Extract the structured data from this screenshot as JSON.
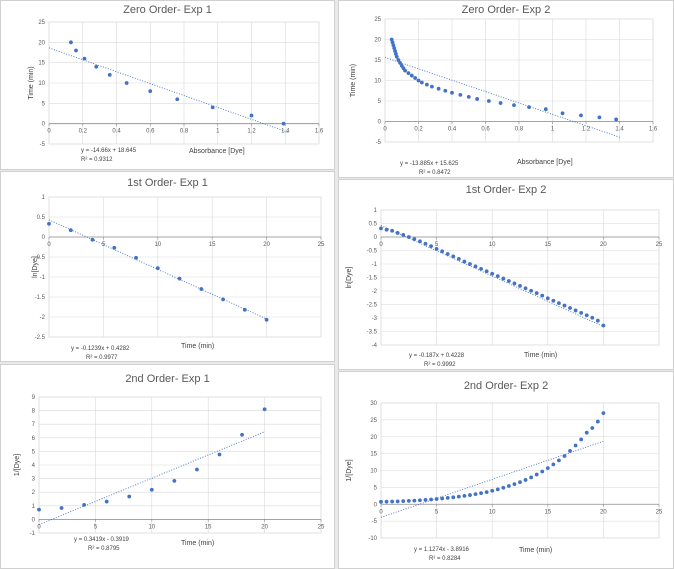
{
  "chart_data": [
    {
      "id": "c1",
      "type": "scatter",
      "title": "Zero Order- Exp 1",
      "xlabel": "Absorbance [Dye]",
      "ylabel": "Time (min)",
      "xlim": [
        0,
        1.6
      ],
      "ylim": [
        -5,
        25
      ],
      "xticks": [
        "0",
        "0.2",
        "0.4",
        "0.6",
        "0.8",
        "1",
        "1.2",
        "1.4",
        "1.6"
      ],
      "yticks": [
        "-5",
        "0",
        "5",
        "10",
        "15",
        "20",
        "25"
      ],
      "series": [
        {
          "x": [
            0.13,
            0.16,
            0.21,
            0.28,
            0.36,
            0.46,
            0.6,
            0.76,
            0.97,
            1.2,
            1.39
          ],
          "y": [
            20,
            18,
            16,
            14,
            12,
            10,
            8,
            6,
            4,
            2,
            0
          ]
        }
      ],
      "trendline": {
        "slope": -14.66,
        "intercept": 18.645
      },
      "equation": "y = -14.66x + 18.645",
      "r2": "R² = 0.9312"
    },
    {
      "id": "c2",
      "type": "scatter",
      "title": "Zero Order- Exp 2",
      "xlabel": "Absorbance [Dye]",
      "ylabel": "Time (min)",
      "xlim": [
        0,
        1.6
      ],
      "ylim": [
        -5,
        25
      ],
      "xticks": [
        "0",
        "0.2",
        "0.4",
        "0.6",
        "0.8",
        "1",
        "1.2",
        "1.4",
        "1.6"
      ],
      "yticks": [
        "-5",
        "0",
        "5",
        "10",
        "15",
        "20",
        "25"
      ],
      "series": [
        {
          "x": [
            0.04,
            0.045,
            0.05,
            0.055,
            0.06,
            0.065,
            0.07,
            0.08,
            0.09,
            0.1,
            0.11,
            0.12,
            0.14,
            0.16,
            0.18,
            0.2,
            0.22,
            0.25,
            0.28,
            0.32,
            0.36,
            0.4,
            0.45,
            0.5,
            0.55,
            0.62,
            0.69,
            0.77,
            0.86,
            0.96,
            1.06,
            1.17,
            1.28,
            1.38
          ],
          "y": [
            20,
            19.3,
            18.6,
            17.9,
            17.2,
            16.5,
            15.8,
            15,
            14.3,
            13.6,
            13,
            12.4,
            11.8,
            11.2,
            10.6,
            10,
            9.5,
            9,
            8.5,
            8,
            7.5,
            7,
            6.5,
            6,
            5.5,
            5,
            4.5,
            4,
            3.5,
            3,
            2,
            1.5,
            1,
            0.5
          ]
        }
      ],
      "trendline": {
        "slope": -13.885,
        "intercept": 15.625
      },
      "equation": "y = -13.885x + 15.625",
      "r2": "R² = 0.8472"
    },
    {
      "id": "c3",
      "type": "scatter",
      "title": "1st Order- Exp 1",
      "xlabel": "Time (min)",
      "ylabel": "ln[Dye]",
      "xlim": [
        0,
        25
      ],
      "ylim": [
        -2.5,
        1
      ],
      "xticks": [
        "0",
        "5",
        "10",
        "15",
        "20",
        "25"
      ],
      "yticks": [
        "-2.5",
        "-2",
        "-1.5",
        "-1",
        "-0.5",
        "0",
        "0.5",
        "1"
      ],
      "series": [
        {
          "x": [
            0,
            2,
            4,
            6,
            8,
            10,
            12,
            14,
            16,
            18,
            20
          ],
          "y": [
            0.33,
            0.17,
            -0.07,
            -0.27,
            -0.52,
            -0.78,
            -1.04,
            -1.3,
            -1.56,
            -1.82,
            -2.07
          ]
        }
      ],
      "trendline": {
        "slope": -0.1239,
        "intercept": 0.4282
      },
      "equation": "y = -0.1239x + 0.4282",
      "r2": "R² = 0.9977"
    },
    {
      "id": "c4",
      "type": "scatter",
      "title": "1st Order- Exp 2",
      "xlabel": "Time (min)",
      "ylabel": "ln[Dye]",
      "xlim": [
        0,
        25
      ],
      "ylim": [
        -4,
        1
      ],
      "xticks": [
        "0",
        "5",
        "10",
        "15",
        "20",
        "25"
      ],
      "yticks": [
        "-4",
        "-3.5",
        "-3",
        "-2.5",
        "-2",
        "-1.5",
        "-1",
        "-0.5",
        "0",
        "0.5",
        "1"
      ],
      "series": [
        {
          "x": [
            0,
            0.5,
            1,
            1.5,
            2,
            2.5,
            3,
            3.5,
            4,
            4.5,
            5,
            5.5,
            6,
            6.5,
            7,
            7.5,
            8,
            8.5,
            9,
            9.5,
            10,
            10.5,
            11,
            11.5,
            12,
            12.5,
            13,
            13.5,
            14,
            14.5,
            15,
            15.5,
            16,
            16.5,
            17,
            17.5,
            18,
            18.5,
            19,
            19.5,
            20
          ],
          "y": [
            0.32,
            0.27,
            0.23,
            0.15,
            0.08,
            0.0,
            -0.08,
            -0.16,
            -0.25,
            -0.34,
            -0.44,
            -0.53,
            -0.63,
            -0.72,
            -0.81,
            -0.91,
            -1.0,
            -1.09,
            -1.18,
            -1.27,
            -1.36,
            -1.45,
            -1.54,
            -1.63,
            -1.72,
            -1.81,
            -1.9,
            -1.99,
            -2.08,
            -2.17,
            -2.27,
            -2.36,
            -2.45,
            -2.54,
            -2.63,
            -2.72,
            -2.81,
            -2.9,
            -2.99,
            -3.1,
            -3.28
          ]
        }
      ],
      "trendline": {
        "slope": -0.187,
        "intercept": 0.4228
      },
      "equation": "y = -0.187x + 0.4228",
      "r2": "R² = 0.9992"
    },
    {
      "id": "c5",
      "type": "scatter",
      "title": "2nd Order- Exp 1",
      "xlabel": "Time (min)",
      "ylabel": "1/[Dye]",
      "xlim": [
        0,
        25
      ],
      "ylim": [
        -1,
        9
      ],
      "xticks": [
        "0",
        "5",
        "10",
        "15",
        "20",
        "25"
      ],
      "yticks": [
        "-1",
        "0",
        "1",
        "2",
        "3",
        "4",
        "5",
        "6",
        "7",
        "8",
        "9"
      ],
      "series": [
        {
          "x": [
            0,
            2,
            4,
            6,
            8,
            10,
            12,
            14,
            16,
            18,
            20
          ],
          "y": [
            0.72,
            0.84,
            1.07,
            1.31,
            1.68,
            2.18,
            2.83,
            3.67,
            4.77,
            6.22,
            8.1
          ]
        }
      ],
      "trendline": {
        "slope": 0.3419,
        "intercept": -0.3919
      },
      "equation": "y = 0.3419x - 0.3919",
      "r2": "R² = 0.8795"
    },
    {
      "id": "c6",
      "type": "scatter",
      "title": "2nd Order- Exp 2",
      "xlabel": "Time (min)",
      "ylabel": "1/[Dye]",
      "xlim": [
        0,
        25
      ],
      "ylim": [
        -10,
        30
      ],
      "xticks": [
        "0",
        "5",
        "10",
        "15",
        "20",
        "25"
      ],
      "yticks": [
        "-10",
        "-5",
        "0",
        "5",
        "10",
        "15",
        "20",
        "25",
        "30"
      ],
      "series": [
        {
          "x": [
            0,
            0.5,
            1,
            1.5,
            2,
            2.5,
            3,
            3.5,
            4,
            4.5,
            5,
            5.5,
            6,
            6.5,
            7,
            7.5,
            8,
            8.5,
            9,
            9.5,
            10,
            10.5,
            11,
            11.5,
            12,
            12.5,
            13,
            13.5,
            14,
            14.5,
            15,
            15.5,
            16,
            16.5,
            17,
            17.5,
            18,
            18.5,
            19,
            19.5,
            20
          ],
          "y": [
            0.72,
            0.76,
            0.8,
            0.86,
            0.92,
            1.0,
            1.08,
            1.17,
            1.28,
            1.4,
            1.55,
            1.7,
            1.88,
            2.05,
            2.25,
            2.48,
            2.72,
            3.0,
            3.3,
            3.6,
            4.0,
            4.4,
            4.9,
            5.4,
            5.95,
            6.55,
            7.2,
            7.95,
            8.8,
            9.7,
            10.7,
            11.8,
            13.0,
            14.3,
            15.8,
            17.4,
            19.2,
            21.2,
            22.6,
            24.5,
            27.0
          ]
        }
      ],
      "trendline": {
        "slope": 1.1274,
        "intercept": -3.8916
      },
      "equation": "y = 1.1274x - 3.8916",
      "r2": "R² = 0.8284"
    }
  ]
}
